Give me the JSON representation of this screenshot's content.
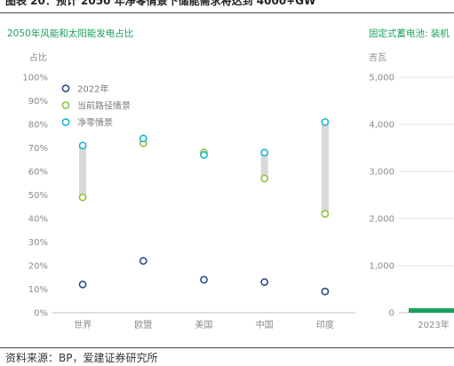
{
  "figure_title": "图表 20：预计 2050 年净零情景下储能需求将达到 4000+GW",
  "source": "资料来源：BP，爱建证券研究所",
  "chart_data": [
    {
      "type": "dot-range",
      "title": "2050年风能和太阳能发电占比",
      "ylabel": "占比",
      "ylim": [
        0,
        100
      ],
      "yticks": [
        "0%",
        "10%",
        "20%",
        "30%",
        "40%",
        "50%",
        "60%",
        "70%",
        "80%",
        "90%",
        "100%"
      ],
      "categories": [
        "世界",
        "欧盟",
        "美国",
        "中国",
        "印度"
      ],
      "series": [
        {
          "name": "2022年",
          "color": "#2c4a8c",
          "values": [
            12,
            22,
            14,
            13,
            9
          ]
        },
        {
          "name": "当前路径情景",
          "color": "#8cc63f",
          "values": [
            49,
            72,
            68,
            57,
            42
          ]
        },
        {
          "name": "净零情景",
          "color": "#1cb3d6",
          "values": [
            71,
            74,
            67,
            68,
            81
          ]
        }
      ],
      "range_color": "#d9d9d9",
      "legend_position": "top-left",
      "grid": false
    },
    {
      "type": "bar",
      "title": "固定式蓄电池: 装机",
      "ylabel": "吉瓦",
      "ylim": [
        0,
        5000
      ],
      "yticks": [
        "0",
        "1,000",
        "2,000",
        "3,000",
        "4,000",
        "5,000"
      ],
      "categories": [
        "2023年"
      ],
      "series": [
        {
          "color": "#1aa15f"
        }
      ],
      "grid": true
    }
  ]
}
